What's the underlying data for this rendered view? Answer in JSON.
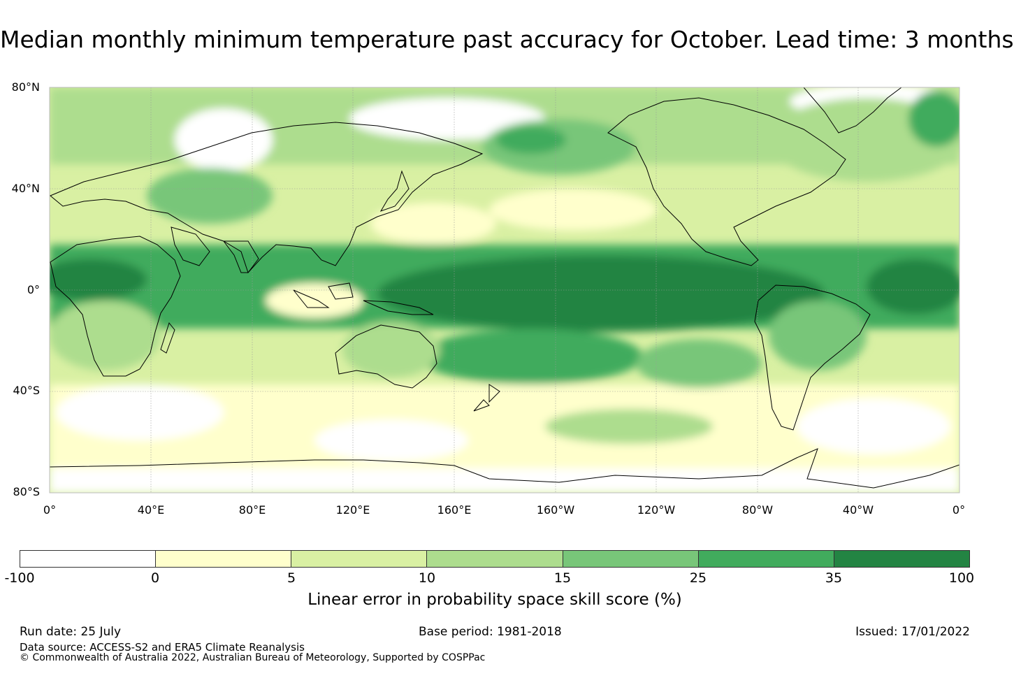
{
  "title": "Median monthly minimum temperature past accuracy for October. Lead time: 3 months",
  "map": {
    "latitude_labels": [
      "80°N",
      "40°N",
      "0°",
      "40°S",
      "80°S"
    ],
    "longitude_labels": [
      "0°",
      "40°E",
      "80°E",
      "120°E",
      "160°E",
      "160°W",
      "120°W",
      "80°W",
      "40°W",
      "0°"
    ]
  },
  "legend": {
    "label": "Linear error in probability space skill score (%)",
    "ticks": [
      "-100",
      "0",
      "5",
      "10",
      "15",
      "25",
      "35",
      "100"
    ],
    "colors": [
      "#ffffff",
      "#ffffcc",
      "#d9f0a3",
      "#addd8e",
      "#78c679",
      "#41ab5d",
      "#238443"
    ]
  },
  "footer": {
    "run_date": "Run date: 25 July",
    "base_period": "Base period: 1981-2018",
    "issued": "Issued: 17/01/2022",
    "data_source": "Data source: ACCESS-S2 and ERA5 Climate Reanalysis",
    "copyright": "© Commonwealth of Australia 2022, Australian Bureau of Meteorology, Supported by COSPPac"
  }
}
